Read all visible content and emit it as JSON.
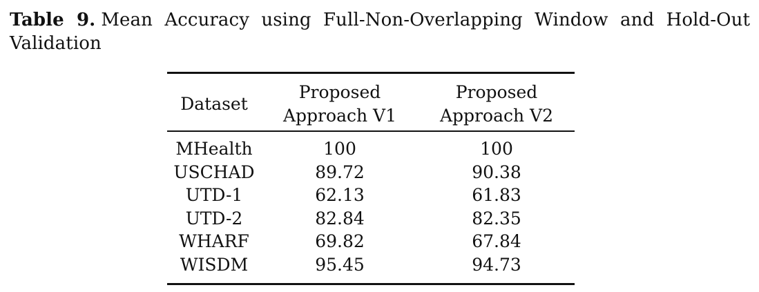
{
  "caption": {
    "label": "Table 9.",
    "text": "Mean Accuracy using Full-Non-Overlapping Window and Hold-Out Validation"
  },
  "chart_data": {
    "type": "table",
    "columns": [
      "Dataset",
      "Proposed Approach V1",
      "Proposed Approach V2"
    ],
    "rows": [
      {
        "dataset": "MHealth",
        "v1": "100",
        "v2": "100"
      },
      {
        "dataset": "USCHAD",
        "v1": "89.72",
        "v2": "90.38"
      },
      {
        "dataset": "UTD-1",
        "v1": "62.13",
        "v2": "61.83"
      },
      {
        "dataset": "UTD-2",
        "v1": "82.84",
        "v2": "82.35"
      },
      {
        "dataset": "WHARF",
        "v1": "69.82",
        "v2": "67.84"
      },
      {
        "dataset": "WISDM",
        "v1": "95.45",
        "v2": "94.73"
      }
    ]
  }
}
